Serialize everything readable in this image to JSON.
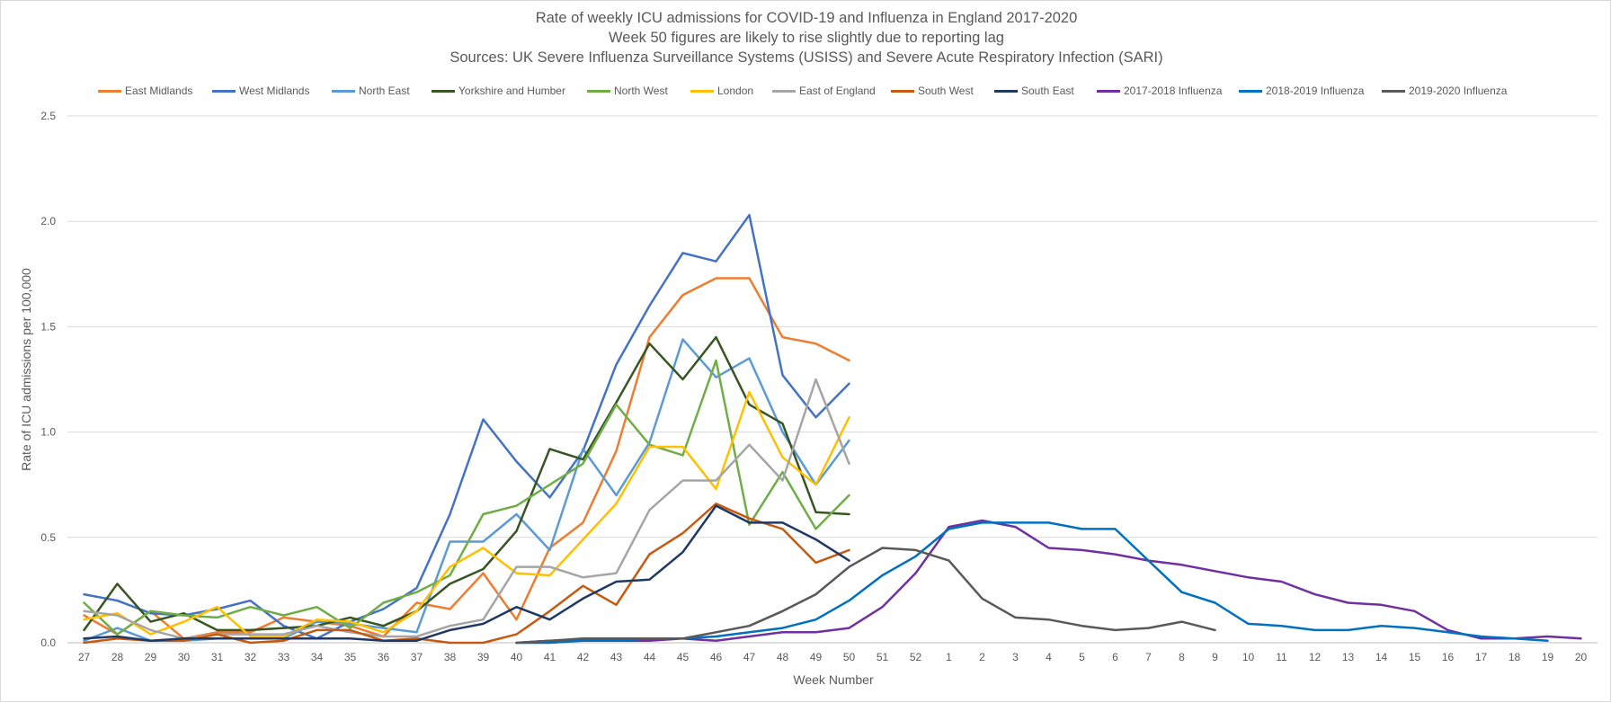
{
  "chart_data": {
    "type": "line",
    "title_lines": [
      "Rate of weekly ICU admissions for COVID-19 and Influenza in England 2017-2020",
      "Week 50 figures are likely to rise slightly due to reporting lag",
      "Sources: UK Severe Influenza Surveillance Systems (USISS) and Severe Acute Respiratory Infection (SARI)"
    ],
    "xlabel": "Week Number",
    "ylabel": "Rate of ICU admissions per 100,000",
    "ylim": [
      0,
      2.5
    ],
    "y_ticks": [
      "0.0",
      "0.5",
      "1.0",
      "1.5",
      "2.0",
      "2.5"
    ],
    "x_categories": [
      "27",
      "28",
      "29",
      "30",
      "31",
      "32",
      "33",
      "34",
      "35",
      "36",
      "37",
      "38",
      "39",
      "40",
      "41",
      "42",
      "43",
      "44",
      "45",
      "46",
      "47",
      "48",
      "49",
      "50",
      "51",
      "52",
      "1",
      "2",
      "3",
      "4",
      "5",
      "6",
      "7",
      "8",
      "9",
      "10",
      "11",
      "12",
      "13",
      "14",
      "15",
      "16",
      "17",
      "18",
      "19",
      "20"
    ],
    "grid": "horizontal",
    "legend_position": "top",
    "series": [
      {
        "name": "East Midlands",
        "color": "#ED7D31",
        "start": 0,
        "values": [
          0.13,
          0.04,
          0.15,
          0.02,
          0.05,
          0.05,
          0.12,
          0.1,
          0.08,
          0.03,
          0.19,
          0.16,
          0.33,
          0.11,
          0.45,
          0.57,
          0.91,
          1.45,
          1.65,
          1.73,
          1.73,
          1.45,
          1.42,
          1.34
        ]
      },
      {
        "name": "West Midlands",
        "color": "#4472C4",
        "start": 0,
        "values": [
          0.23,
          0.2,
          0.14,
          0.13,
          0.16,
          0.2,
          0.08,
          0.02,
          0.1,
          0.16,
          0.26,
          0.61,
          1.06,
          0.86,
          0.69,
          0.91,
          1.32,
          1.6,
          1.85,
          1.81,
          2.03,
          1.27,
          1.07,
          1.23
        ]
      },
      {
        "name": "North East",
        "color": "#5B9BD5",
        "start": 0,
        "values": [
          0.01,
          0.07,
          0.01,
          0.01,
          0.02,
          0.02,
          0.02,
          0.1,
          0.09,
          0.07,
          0.05,
          0.48,
          0.48,
          0.61,
          0.44,
          0.92,
          0.7,
          0.95,
          1.44,
          1.26,
          1.35,
          1.0,
          0.75,
          0.96
        ]
      },
      {
        "name": "Yorkshire and Humber",
        "color": "#375623",
        "start": 0,
        "values": [
          0.06,
          0.28,
          0.1,
          0.14,
          0.06,
          0.06,
          0.07,
          0.08,
          0.12,
          0.08,
          0.15,
          0.28,
          0.35,
          0.53,
          0.92,
          0.87,
          1.14,
          1.42,
          1.25,
          1.45,
          1.13,
          1.04,
          0.62,
          0.61
        ]
      },
      {
        "name": "North West",
        "color": "#70AD47",
        "start": 0,
        "values": [
          0.19,
          0.04,
          0.15,
          0.13,
          0.12,
          0.17,
          0.13,
          0.17,
          0.07,
          0.19,
          0.24,
          0.32,
          0.61,
          0.65,
          0.75,
          0.85,
          1.13,
          0.94,
          0.89,
          1.34,
          0.56,
          0.81,
          0.54,
          0.7
        ]
      },
      {
        "name": "London",
        "color": "#FFC000",
        "start": 0,
        "values": [
          0.11,
          0.14,
          0.04,
          0.1,
          0.17,
          0.03,
          0.03,
          0.11,
          0.1,
          0.05,
          0.15,
          0.36,
          0.45,
          0.33,
          0.32,
          0.49,
          0.66,
          0.93,
          0.93,
          0.73,
          1.19,
          0.88,
          0.75,
          1.07
        ]
      },
      {
        "name": "East of England",
        "color": "#A5A5A5",
        "start": 0,
        "values": [
          0.15,
          0.13,
          0.06,
          0.02,
          0.04,
          0.04,
          0.04,
          0.08,
          0.05,
          0.03,
          0.03,
          0.08,
          0.11,
          0.36,
          0.36,
          0.31,
          0.33,
          0.63,
          0.77,
          0.77,
          0.94,
          0.77,
          1.25,
          0.85
        ]
      },
      {
        "name": "South West",
        "color": "#C55A11",
        "start": 0,
        "values": [
          0.0,
          0.02,
          0.01,
          0.01,
          0.04,
          0.0,
          0.01,
          0.06,
          0.06,
          0.01,
          0.02,
          0.0,
          0.0,
          0.04,
          0.15,
          0.27,
          0.18,
          0.42,
          0.52,
          0.66,
          0.59,
          0.54,
          0.38,
          0.44
        ]
      },
      {
        "name": "South East",
        "color": "#203864",
        "start": 0,
        "values": [
          0.02,
          0.03,
          0.01,
          0.02,
          0.02,
          0.02,
          0.02,
          0.02,
          0.02,
          0.01,
          0.01,
          0.06,
          0.09,
          0.17,
          0.11,
          0.21,
          0.29,
          0.3,
          0.43,
          0.65,
          0.57,
          0.57,
          0.49,
          0.39
        ]
      },
      {
        "name": "2017-2018 Influenza",
        "color": "#7030A0",
        "start": 13,
        "values": [
          0.0,
          0.01,
          0.01,
          0.01,
          0.01,
          0.02,
          0.01,
          0.03,
          0.05,
          0.05,
          0.07,
          0.17,
          0.33,
          0.55,
          0.58,
          0.55,
          0.45,
          0.44,
          0.42,
          0.39,
          0.37,
          0.34,
          0.31,
          0.29,
          0.23,
          0.19,
          0.18,
          0.15,
          0.06,
          0.02,
          0.02,
          0.03,
          0.02
        ]
      },
      {
        "name": "2018-2019 Influenza",
        "color": "#0070C0",
        "start": 13,
        "values": [
          0.0,
          0.0,
          0.01,
          0.01,
          0.02,
          0.02,
          0.03,
          0.05,
          0.07,
          0.11,
          0.2,
          0.32,
          0.41,
          0.54,
          0.57,
          0.57,
          0.57,
          0.54,
          0.54,
          0.39,
          0.24,
          0.19,
          0.09,
          0.08,
          0.06,
          0.06,
          0.08,
          0.07,
          0.05,
          0.03,
          0.02,
          0.01
        ]
      },
      {
        "name": "2019-2020 Influenza",
        "color": "#595959",
        "start": 13,
        "values": [
          0.0,
          0.01,
          0.02,
          0.02,
          0.02,
          0.02,
          0.05,
          0.08,
          0.15,
          0.23,
          0.36,
          0.45,
          0.44,
          0.39,
          0.21,
          0.12,
          0.11,
          0.08,
          0.06,
          0.07,
          0.1,
          0.06
        ]
      }
    ]
  }
}
